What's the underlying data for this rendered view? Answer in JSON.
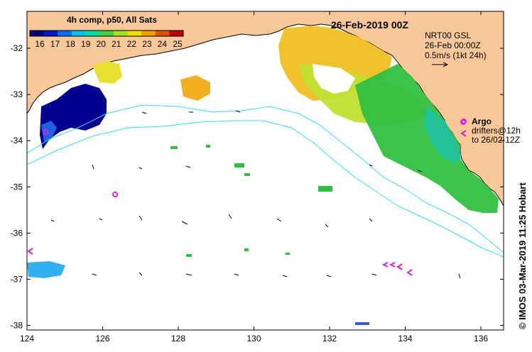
{
  "map": {
    "title": "26-Feb-2019 00Z",
    "legend": {
      "title": "4h comp, p50, All Sats",
      "ticks": [
        "16",
        "17",
        "18",
        "19",
        "20",
        "21",
        "22",
        "23",
        "24",
        "25"
      ],
      "colors": [
        "#000080",
        "#0018c8",
        "#0070f0",
        "#00c0f0",
        "#00e0a0",
        "#40d040",
        "#a0e020",
        "#f0e000",
        "#f0a000",
        "#e05000",
        "#c00000"
      ]
    },
    "velocity_info": {
      "line1": "NRT00 GSL",
      "line2": "26-Feb 00:00Z",
      "line3": "0.5m/s (1kt 24h)"
    },
    "argo": {
      "label": "Argo",
      "line2": "drifters@12h",
      "line3": "to 26/02-12Z"
    },
    "credit": "© IMOS 03-Mar-2019 11:25 Hobart",
    "x_axis": {
      "labels": [
        "124",
        "126",
        "128",
        "130",
        "132",
        "134",
        "136"
      ],
      "values": [
        124,
        126,
        128,
        130,
        132,
        134,
        136
      ],
      "range": [
        124,
        136.6
      ]
    },
    "y_axis": {
      "labels": [
        "-32",
        "-33",
        "-34",
        "-35",
        "-36",
        "-37",
        "-38"
      ],
      "values": [
        -32,
        -33,
        -34,
        -35,
        -36,
        -37,
        -38
      ],
      "range": [
        -38.1,
        -31.2
      ]
    },
    "colors": {
      "land": "#f8c898",
      "ocean": "#ffffff",
      "contour": "#30e0f0",
      "argo": "#e020e0"
    }
  }
}
